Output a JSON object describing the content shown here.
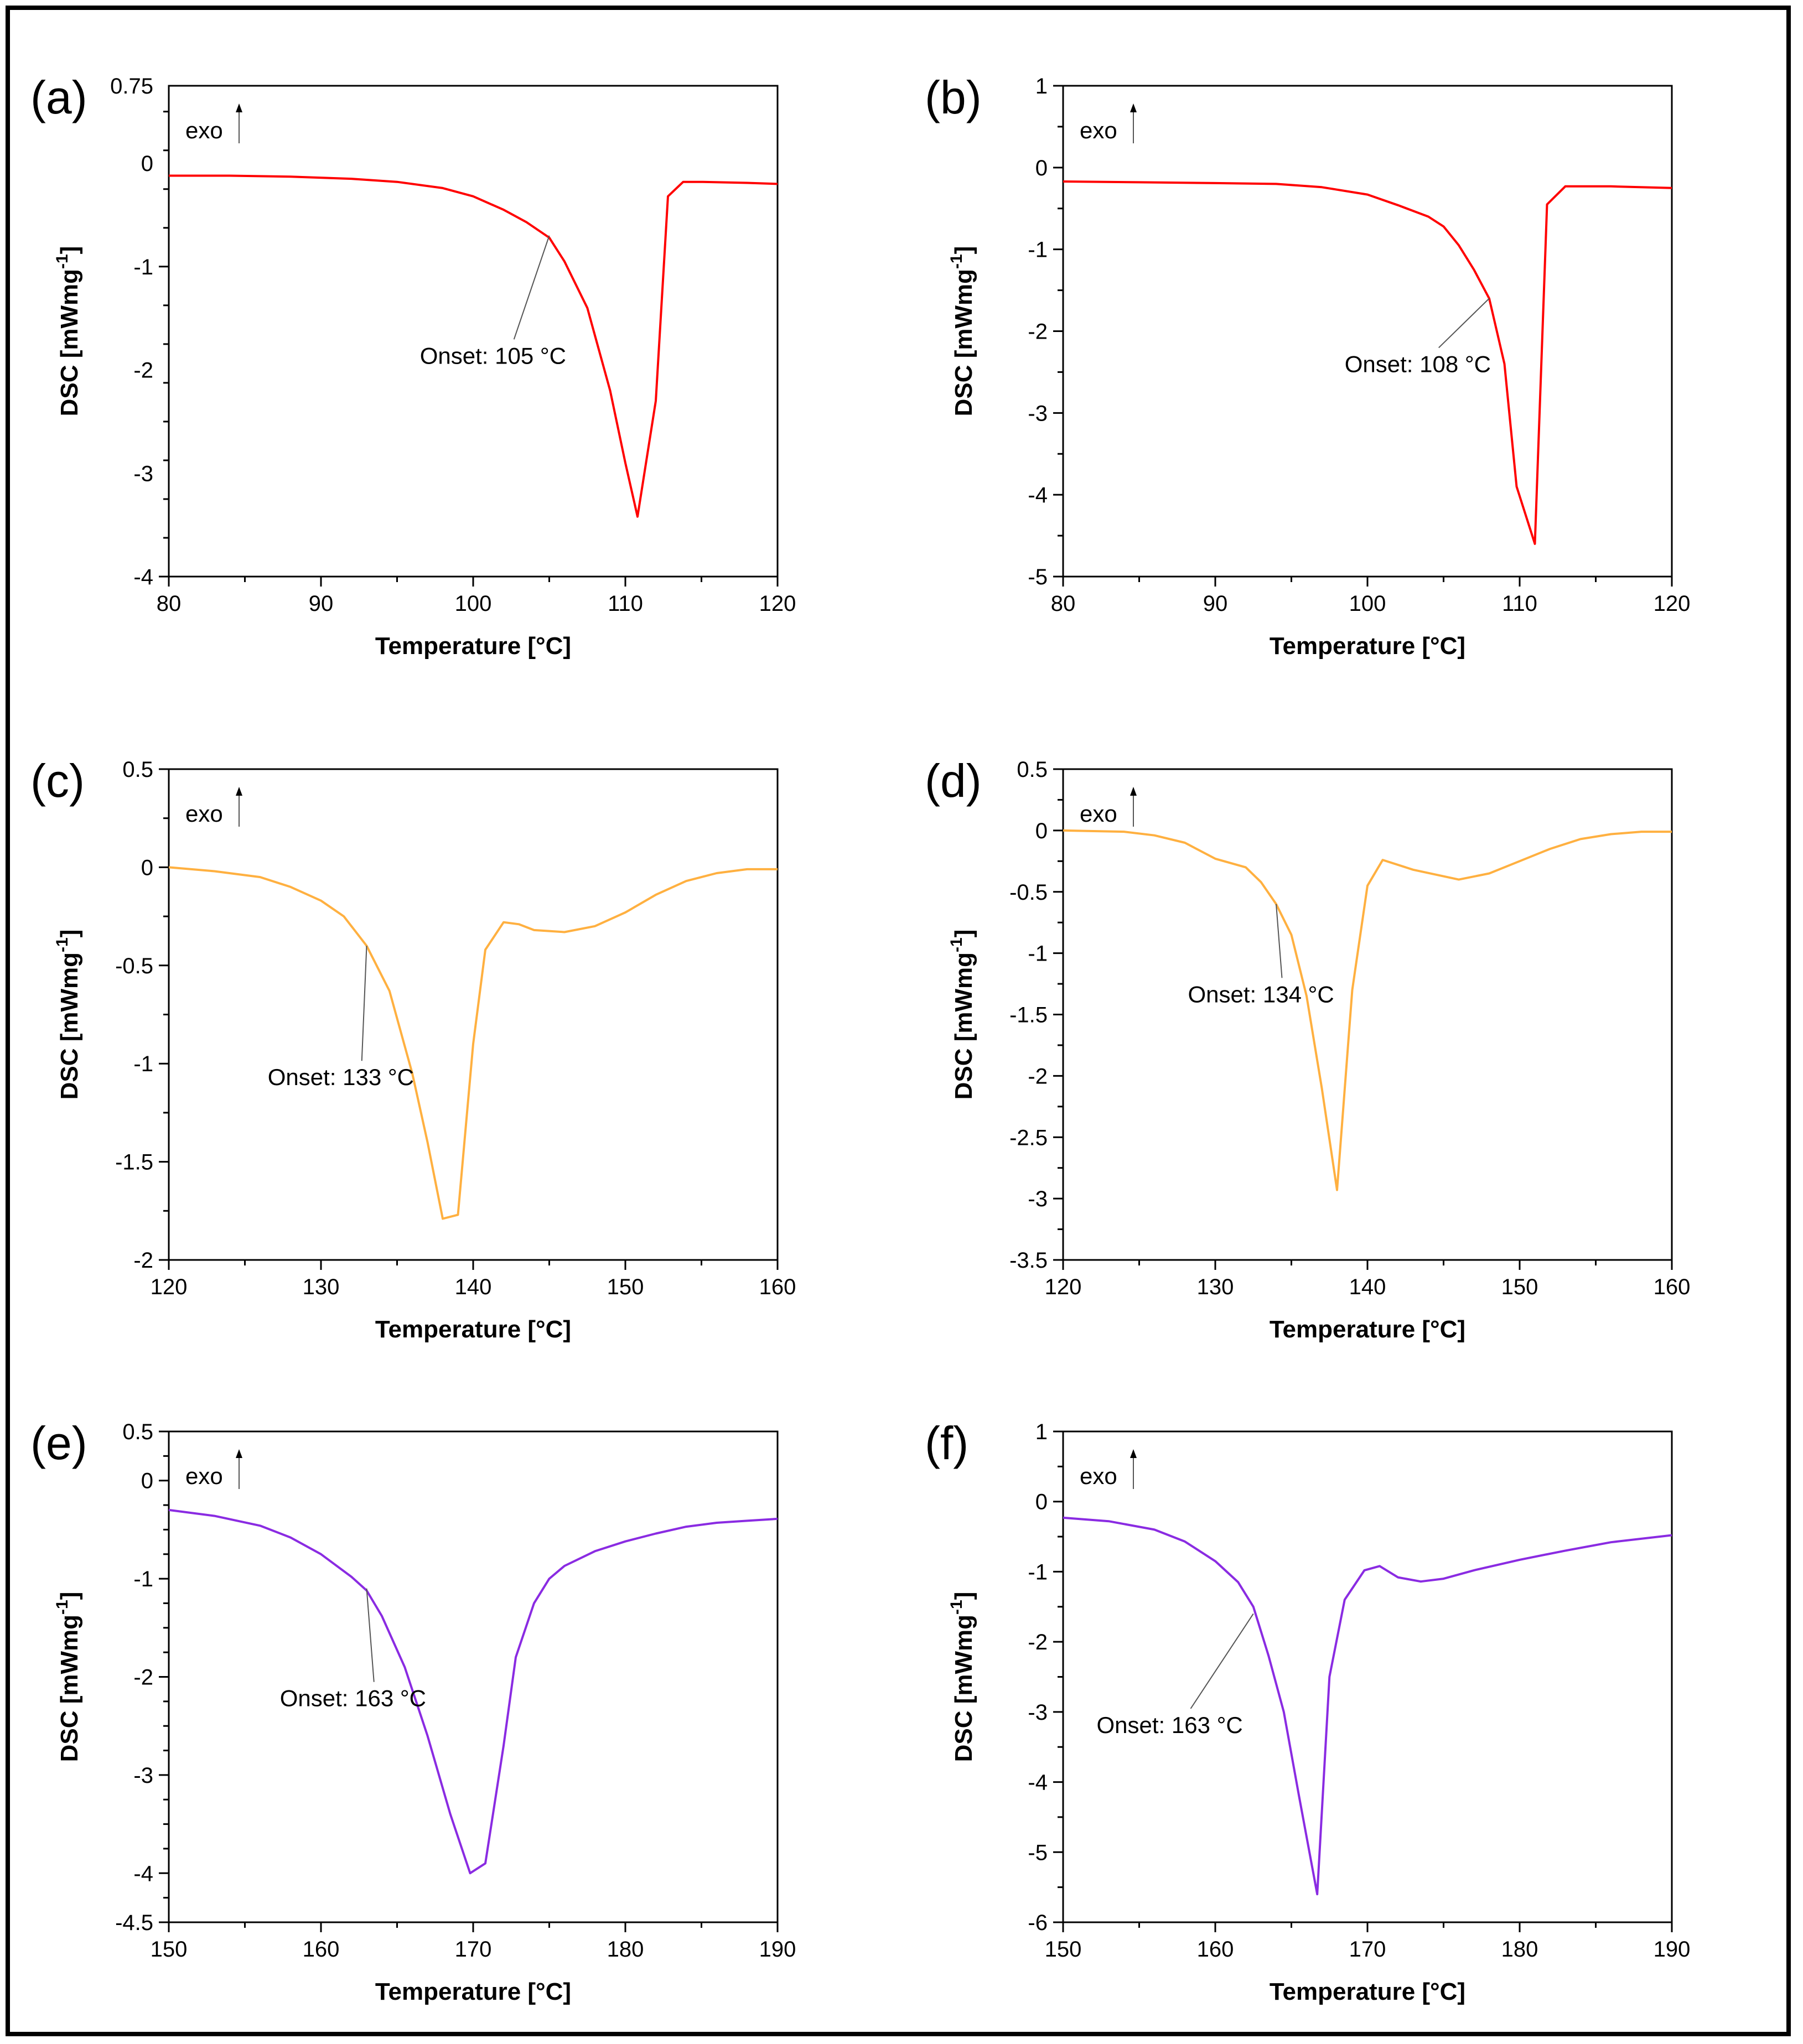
{
  "figure": {
    "exo_label": "exo",
    "xlabel": "Temperature [°C]",
    "ylabel": "DSC [mWmg",
    "ylabel_sup": "-1",
    "ylabel_close": "]"
  },
  "chart_data": [
    {
      "id": "a",
      "label": "(a)",
      "type": "line",
      "color": "#ff0000",
      "title": "",
      "xlabel": "Temperature [°C]",
      "ylabel": "DSC [mWmg-1]",
      "xlim": [
        80,
        120
      ],
      "ylim": [
        -4,
        0.75
      ],
      "xticks": [
        80,
        90,
        100,
        110,
        120
      ],
      "xtick_labels": [
        "80",
        "90",
        "100",
        "110",
        "120"
      ],
      "yticks": [
        0.75,
        0,
        -1,
        -2,
        -3,
        -4
      ],
      "ytick_labels": [
        "0.75",
        "0",
        "-1",
        "-2",
        "-3",
        "-4"
      ],
      "x": [
        80,
        84,
        88,
        92,
        95,
        98,
        100,
        102,
        103.5,
        105,
        106,
        107.5,
        109,
        110,
        110.8,
        112,
        112.8,
        113.8,
        115,
        118,
        120
      ],
      "y": [
        -0.12,
        -0.12,
        -0.13,
        -0.15,
        -0.18,
        -0.24,
        -0.32,
        -0.45,
        -0.57,
        -0.72,
        -0.95,
        -1.4,
        -2.2,
        -2.9,
        -3.42,
        -2.3,
        -0.32,
        -0.18,
        -0.18,
        -0.19,
        -0.2
      ],
      "annotation": {
        "text": "Onset: 105 °C",
        "point": [
          105,
          -0.7
        ],
        "text_at": [
          96.5,
          -1.94
        ]
      }
    },
    {
      "id": "b",
      "label": "(b)",
      "type": "line",
      "color": "#ff0000",
      "title": "",
      "xlabel": "Temperature [°C]",
      "ylabel": "DSC [mWmg-1]",
      "xlim": [
        80,
        120
      ],
      "ylim": [
        -5,
        1
      ],
      "xticks": [
        80,
        90,
        100,
        110,
        120
      ],
      "xtick_labels": [
        "80",
        "90",
        "100",
        "110",
        "120"
      ],
      "yticks": [
        1,
        0,
        -1,
        -2,
        -3,
        -4,
        -5
      ],
      "ytick_labels": [
        "1",
        "0",
        "-1",
        "-2",
        "-3",
        "-4",
        "-5"
      ],
      "x": [
        80,
        85,
        90,
        94,
        97,
        100,
        102,
        104,
        105,
        106,
        107,
        108,
        109,
        109.8,
        111,
        111.8,
        113,
        116,
        120
      ],
      "y": [
        -0.17,
        -0.18,
        -0.19,
        -0.2,
        -0.24,
        -0.33,
        -0.46,
        -0.6,
        -0.72,
        -0.95,
        -1.25,
        -1.6,
        -2.4,
        -3.9,
        -4.6,
        -0.45,
        -0.23,
        -0.23,
        -0.25
      ],
      "annotation": {
        "text": "Onset: 108 °C",
        "point": [
          108,
          -1.6
        ],
        "text_at": [
          98.5,
          -2.5
        ]
      }
    },
    {
      "id": "c",
      "label": "(c)",
      "type": "line",
      "color": "#ffb040",
      "title": "",
      "xlabel": "Temperature [°C]",
      "ylabel": "DSC [mWmg-1]",
      "xlim": [
        120,
        160
      ],
      "ylim": [
        -2,
        0.5
      ],
      "xticks": [
        120,
        130,
        140,
        150,
        160
      ],
      "xtick_labels": [
        "120",
        "130",
        "140",
        "150",
        "160"
      ],
      "yticks": [
        0.5,
        0,
        -0.5,
        -1,
        -1.5,
        -2
      ],
      "ytick_labels": [
        "0.5",
        "0",
        "-0.5",
        "-1",
        "-1.5",
        "-2"
      ],
      "x": [
        120,
        123,
        126,
        128,
        130,
        131.5,
        133,
        134.5,
        136,
        137,
        138,
        139,
        140,
        140.8,
        142,
        143,
        144,
        146,
        148,
        150,
        152,
        154,
        156,
        158,
        160
      ],
      "y": [
        0,
        -0.02,
        -0.05,
        -0.1,
        -0.17,
        -0.25,
        -0.4,
        -0.63,
        -1.05,
        -1.4,
        -1.79,
        -1.77,
        -0.9,
        -0.42,
        -0.28,
        -0.29,
        -0.32,
        -0.33,
        -0.3,
        -0.23,
        -0.14,
        -0.07,
        -0.03,
        -0.01,
        -0.01
      ],
      "annotation": {
        "text": "Onset: 133 °C",
        "point": [
          133,
          -0.4
        ],
        "text_at": [
          126.5,
          -1.11
        ]
      }
    },
    {
      "id": "d",
      "label": "(d)",
      "type": "line",
      "color": "#ffb040",
      "title": "",
      "xlabel": "Temperature [°C]",
      "ylabel": "DSC [mWmg-1]",
      "xlim": [
        120,
        160
      ],
      "ylim": [
        -3.5,
        0.5
      ],
      "xticks": [
        120,
        130,
        140,
        150,
        160
      ],
      "xtick_labels": [
        "120",
        "130",
        "140",
        "150",
        "160"
      ],
      "yticks": [
        0.5,
        0,
        -0.5,
        -1,
        -1.5,
        -2,
        -2.5,
        -3,
        -3.5
      ],
      "ytick_labels": [
        "0.5",
        "0",
        "-0.5",
        "-1",
        "-1.5",
        "-2",
        "-2.5",
        "-3",
        "-3.5"
      ],
      "x": [
        120,
        124,
        126,
        128,
        130,
        132,
        133,
        134,
        135,
        136,
        137,
        138,
        139,
        140,
        141,
        143,
        146,
        148,
        150,
        152,
        154,
        156,
        158,
        160
      ],
      "y": [
        0,
        -0.01,
        -0.04,
        -0.1,
        -0.23,
        -0.3,
        -0.42,
        -0.6,
        -0.85,
        -1.35,
        -2.1,
        -2.93,
        -1.3,
        -0.45,
        -0.24,
        -0.32,
        -0.4,
        -0.35,
        -0.25,
        -0.15,
        -0.07,
        -0.03,
        -0.01,
        -0.01
      ],
      "annotation": {
        "text": "Onset: 134 °C",
        "point": [
          134,
          -0.6
        ],
        "text_at": [
          128.2,
          -1.4
        ]
      }
    },
    {
      "id": "e",
      "label": "(e)",
      "type": "line",
      "color": "#8a2be2",
      "title": "",
      "xlabel": "Temperature [°C]",
      "ylabel": "DSC [mWmg-1]",
      "xlim": [
        150,
        190
      ],
      "ylim": [
        -4.5,
        0.5
      ],
      "xticks": [
        150,
        160,
        170,
        180,
        190
      ],
      "xtick_labels": [
        "150",
        "160",
        "170",
        "180",
        "190"
      ],
      "yticks": [
        0.5,
        0,
        -1,
        -2,
        -3,
        -4,
        -4.5
      ],
      "ytick_labels": [
        "0.5",
        "0",
        "-1",
        "-2",
        "-3",
        "-4",
        "-4.5"
      ],
      "x": [
        150,
        153,
        156,
        158,
        160,
        162,
        163,
        164,
        165.5,
        167,
        168.5,
        169.8,
        170.8,
        172,
        172.8,
        174,
        175,
        176,
        178,
        180,
        182,
        184,
        186,
        188,
        190
      ],
      "y": [
        -0.3,
        -0.36,
        -0.46,
        -0.58,
        -0.75,
        -0.98,
        -1.12,
        -1.38,
        -1.9,
        -2.6,
        -3.4,
        -4.0,
        -3.9,
        -2.7,
        -1.8,
        -1.25,
        -1.0,
        -0.87,
        -0.72,
        -0.62,
        -0.54,
        -0.47,
        -0.43,
        -0.41,
        -0.39
      ],
      "annotation": {
        "text": "Onset: 163 °C",
        "point": [
          163,
          -1.1
        ],
        "text_at": [
          157.3,
          -2.3
        ]
      }
    },
    {
      "id": "f",
      "label": "(f)",
      "type": "line",
      "color": "#8a2be2",
      "title": "",
      "xlabel": "Temperature [°C]",
      "ylabel": "DSC [mWmg-1]",
      "xlim": [
        150,
        190
      ],
      "ylim": [
        -6,
        1
      ],
      "xticks": [
        150,
        160,
        170,
        180,
        190
      ],
      "xtick_labels": [
        "150",
        "160",
        "170",
        "180",
        "190"
      ],
      "yticks": [
        1,
        0,
        -1,
        -2,
        -3,
        -4,
        -5,
        -6
      ],
      "ytick_labels": [
        "1",
        "0",
        "-1",
        "-2",
        "-3",
        "-4",
        "-5",
        "-6"
      ],
      "x": [
        150,
        153,
        156,
        158,
        160,
        161.5,
        162.5,
        163.5,
        164.5,
        165.5,
        166.7,
        167.5,
        168.5,
        169.8,
        170.8,
        172,
        173.5,
        175,
        177,
        180,
        183,
        186,
        190
      ],
      "y": [
        -0.23,
        -0.28,
        -0.4,
        -0.57,
        -0.85,
        -1.15,
        -1.5,
        -2.2,
        -3.0,
        -4.2,
        -5.6,
        -2.5,
        -1.4,
        -0.98,
        -0.92,
        -1.08,
        -1.14,
        -1.1,
        -0.98,
        -0.83,
        -0.7,
        -0.58,
        -0.48
      ],
      "annotation": {
        "text": "Onset: 163 °C",
        "point": [
          162.5,
          -1.6
        ],
        "text_at": [
          152.2,
          -3.3
        ]
      }
    }
  ]
}
